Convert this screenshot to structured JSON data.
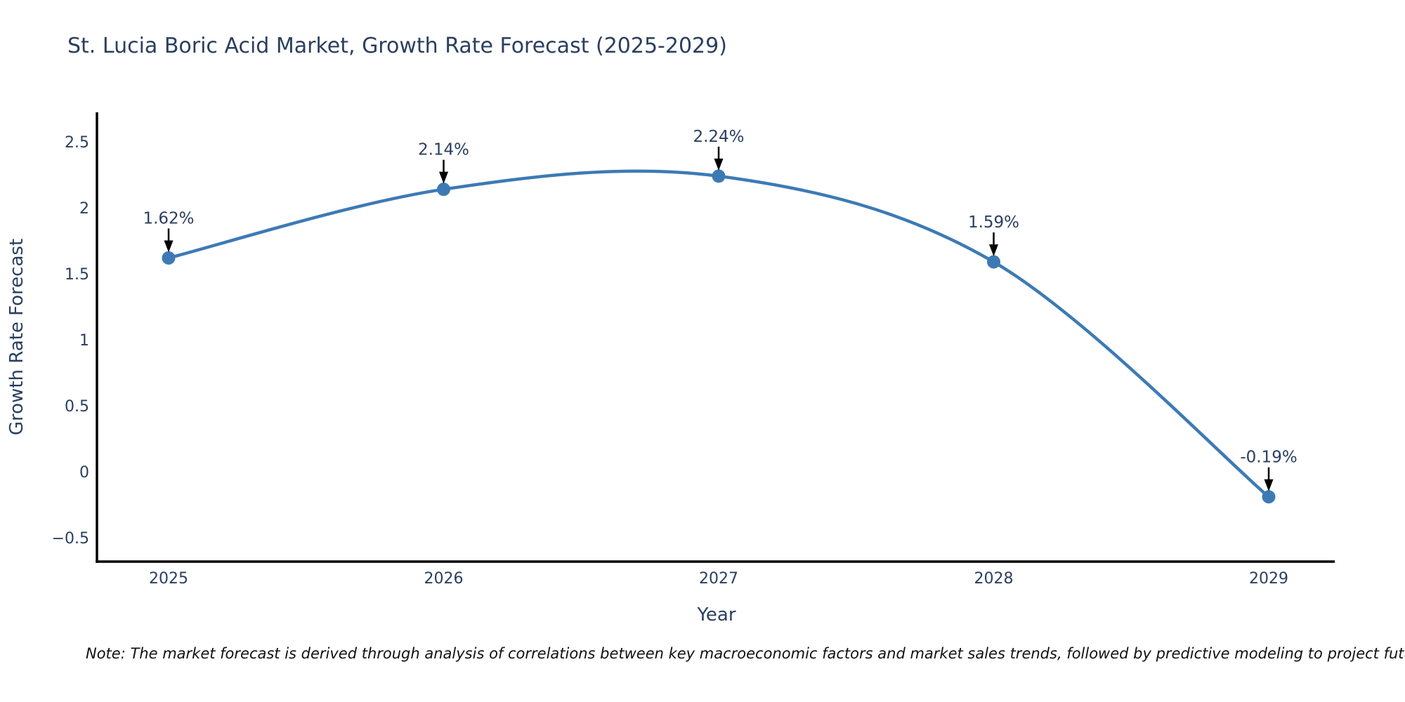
{
  "title": "St. Lucia Boric Acid Market, Growth Rate Forecast (2025-2029)",
  "note": "Note: The market forecast is derived through analysis of correlations between key macroeconomic factors and market sales trends, followed by predictive modeling to project future sales.",
  "chart_data": {
    "type": "line",
    "curve": "spline",
    "title": "St. Lucia Boric Acid Market, Growth Rate Forecast (2025-2029)",
    "xlabel": "Year",
    "ylabel": "Growth Rate Forecast",
    "x": [
      2025,
      2026,
      2027,
      2028,
      2029
    ],
    "y": [
      1.62,
      2.14,
      2.24,
      1.59,
      -0.19
    ],
    "point_labels": [
      "1.62%",
      "2.14%",
      "2.24%",
      "1.59%",
      "-0.19%"
    ],
    "yticks": [
      2.5,
      2,
      1.5,
      1,
      0.5,
      0,
      -0.5
    ],
    "ytick_labels": [
      "2.5",
      "2",
      "1.5",
      "1",
      "0.5",
      "0",
      "−0.5"
    ],
    "ylim": [
      -0.69,
      2.73
    ],
    "grid": false,
    "legend": "none",
    "annotation_arrows": true,
    "line_color": "#3d7ab5",
    "marker_color": "#3d7ab5",
    "arrow_color": "#000000",
    "axis_color": "#000000",
    "text_color": "#2a3f5f",
    "background_color": "#ffffff"
  }
}
